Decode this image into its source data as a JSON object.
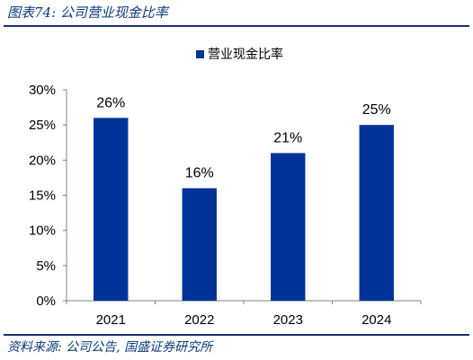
{
  "figure_title": "图表74:  公司营业现金比率",
  "source_note": "资料来源:  公司公告,  国盛证券研究所",
  "colors": {
    "bar": "#003399",
    "title_text": "#0b3a7a",
    "rule": "#1a2f6e",
    "axis": "#808080",
    "text": "#000000"
  },
  "chart_data": {
    "type": "bar",
    "categories": [
      "2021",
      "2022",
      "2023",
      "2024"
    ],
    "series": [
      {
        "name": "营业现金比率",
        "values": [
          26,
          16,
          21,
          25
        ],
        "labels": [
          "26%",
          "16%",
          "21%",
          "25%"
        ]
      }
    ],
    "ylim": [
      0,
      30
    ],
    "yticks": [
      "0%",
      "5%",
      "10%",
      "15%",
      "20%",
      "25%",
      "30%"
    ],
    "ytick_values": [
      0,
      5,
      10,
      15,
      20,
      25,
      30
    ],
    "grid": false,
    "legend_position": "top-center",
    "title": "",
    "xlabel": "",
    "ylabel": ""
  }
}
